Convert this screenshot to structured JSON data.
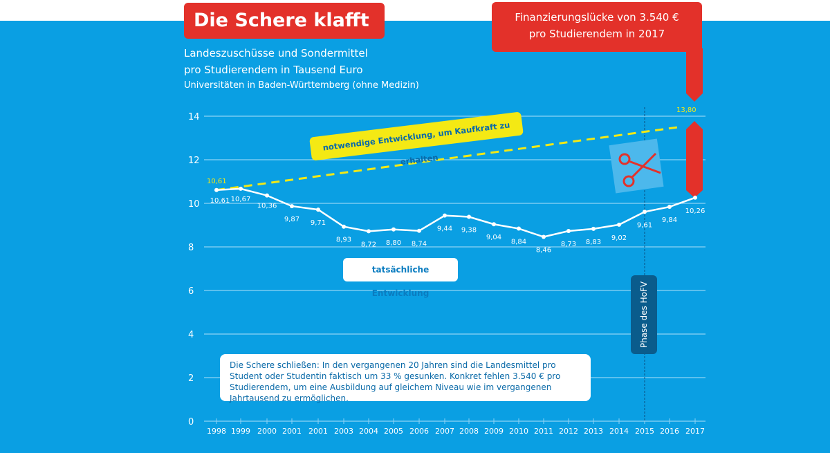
{
  "title": "Die Schere klafft",
  "subtitle_lines": [
    "Landeszuschüsse und Sondermittel",
    "pro Studierendem in Tausend Euro",
    "Universitäten in Baden-Württemberg (ohne Medizin)"
  ],
  "gap_callout": [
    "Finanzierungslücke von 3.540 €",
    "pro Studierendem in 2017"
  ],
  "needed_label": "notwendige Entwicklung, um Kaufkraft zu erhalten",
  "actual_label": "tatsächliche Entwicklung",
  "phase_label": "Phase des HoFV",
  "note": "Die Schere schließen: In den vergangenen 20 Jahren sind die Landesmittel pro Student oder Studentin faktisch um 33 % gesunken. Konkret fehlen 3.540 € pro Studierendem, um eine Ausbildung auf gleichem Niveau wie im vergangenen Jahrtausend zu ermöglichen.",
  "colors": {
    "background": "#0a9fe3",
    "accent": "#e3312a",
    "needed": "#f4e914",
    "actual": "#ffffff"
  },
  "chart_data": {
    "type": "line",
    "categories": [
      "1998",
      "1999",
      "2000",
      "2001",
      "2001",
      "2003",
      "2004",
      "2005",
      "2006",
      "2007",
      "2008",
      "2009",
      "2010",
      "2011",
      "2012",
      "2013",
      "2014",
      "2015",
      "2016",
      "2017"
    ],
    "series": [
      {
        "name": "tatsächliche Entwicklung",
        "values": [
          10.61,
          10.67,
          10.36,
          9.87,
          9.71,
          8.93,
          8.72,
          8.8,
          8.74,
          9.44,
          9.38,
          9.04,
          8.84,
          8.46,
          8.73,
          8.83,
          9.02,
          9.61,
          9.84,
          10.26
        ],
        "labels": [
          "10,61",
          "10,67",
          "10,36",
          "9,87",
          "9,71",
          "8,93",
          "8,72",
          "8,80",
          "8,74",
          "9,44",
          "9,38",
          "9,04",
          "8,84",
          "8,46",
          "8,73",
          "8,83",
          "9,02",
          "9,61",
          "9,84",
          "10,26"
        ]
      },
      {
        "name": "notwendige Entwicklung, um Kaufkraft zu erhalten",
        "start": 10.61,
        "end": 13.8,
        "start_label": "10,61",
        "end_label": "13,80"
      }
    ],
    "yticks": [
      "0",
      "2",
      "4",
      "6",
      "8",
      "10",
      "12",
      "14"
    ],
    "ylim": [
      0,
      14
    ],
    "grid": true,
    "marker_year": "2015"
  }
}
